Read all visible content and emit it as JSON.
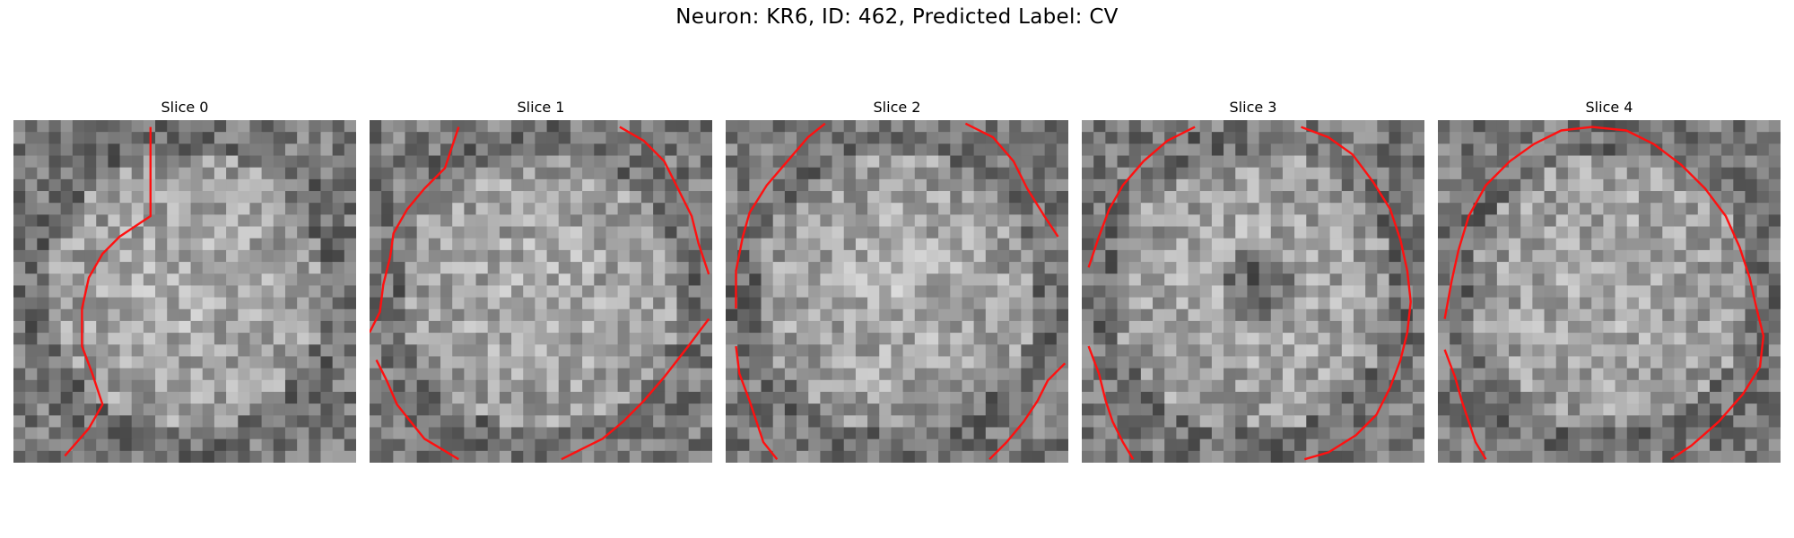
{
  "figure": {
    "title": "Neuron: KR6, ID: 462, Predicted Label: CV"
  },
  "panels": [
    {
      "title": "Slice 0",
      "dark_center": false,
      "contours": [
        [
          [
            0.15,
            0.98
          ],
          [
            0.22,
            0.9
          ],
          [
            0.26,
            0.83
          ],
          [
            0.23,
            0.74
          ],
          [
            0.2,
            0.66
          ],
          [
            0.2,
            0.55
          ],
          [
            0.22,
            0.46
          ],
          [
            0.26,
            0.39
          ],
          [
            0.31,
            0.34
          ],
          [
            0.37,
            0.3
          ],
          [
            0.4,
            0.28
          ],
          [
            0.4,
            0.02
          ]
        ]
      ]
    },
    {
      "title": "Slice 1",
      "dark_center": false,
      "contours": [
        [
          [
            0.0,
            0.62
          ],
          [
            0.03,
            0.56
          ],
          [
            0.04,
            0.48
          ],
          [
            0.06,
            0.4
          ],
          [
            0.07,
            0.33
          ],
          [
            0.11,
            0.26
          ],
          [
            0.16,
            0.2
          ],
          [
            0.22,
            0.14
          ],
          [
            0.26,
            0.02
          ]
        ],
        [
          [
            0.73,
            0.02
          ],
          [
            0.8,
            0.06
          ],
          [
            0.86,
            0.12
          ],
          [
            0.9,
            0.2
          ],
          [
            0.94,
            0.28
          ],
          [
            0.96,
            0.36
          ],
          [
            0.99,
            0.45
          ]
        ],
        [
          [
            0.02,
            0.7
          ],
          [
            0.05,
            0.76
          ],
          [
            0.08,
            0.83
          ],
          [
            0.12,
            0.88
          ],
          [
            0.16,
            0.93
          ],
          [
            0.21,
            0.96
          ],
          [
            0.26,
            0.99
          ]
        ],
        [
          [
            0.56,
            0.99
          ],
          [
            0.62,
            0.96
          ],
          [
            0.68,
            0.93
          ],
          [
            0.74,
            0.88
          ],
          [
            0.8,
            0.82
          ],
          [
            0.86,
            0.75
          ],
          [
            0.93,
            0.66
          ],
          [
            0.99,
            0.58
          ]
        ]
      ]
    },
    {
      "title": "Slice 2",
      "dark_center": false,
      "contours": [
        [
          [
            0.03,
            0.55
          ],
          [
            0.03,
            0.44
          ],
          [
            0.05,
            0.34
          ],
          [
            0.07,
            0.27
          ],
          [
            0.12,
            0.19
          ],
          [
            0.18,
            0.12
          ],
          [
            0.24,
            0.05
          ],
          [
            0.29,
            0.01
          ]
        ],
        [
          [
            0.7,
            0.01
          ],
          [
            0.78,
            0.05
          ],
          [
            0.84,
            0.12
          ],
          [
            0.88,
            0.2
          ],
          [
            0.93,
            0.28
          ],
          [
            0.97,
            0.34
          ]
        ],
        [
          [
            0.03,
            0.66
          ],
          [
            0.04,
            0.74
          ],
          [
            0.07,
            0.82
          ],
          [
            0.09,
            0.88
          ],
          [
            0.11,
            0.94
          ],
          [
            0.15,
            0.99
          ]
        ],
        [
          [
            0.77,
            0.99
          ],
          [
            0.82,
            0.94
          ],
          [
            0.87,
            0.88
          ],
          [
            0.91,
            0.82
          ],
          [
            0.94,
            0.76
          ],
          [
            0.99,
            0.71
          ]
        ]
      ]
    },
    {
      "title": "Slice 3",
      "dark_center": true,
      "contours": [
        [
          [
            0.02,
            0.43
          ],
          [
            0.05,
            0.34
          ],
          [
            0.08,
            0.26
          ],
          [
            0.12,
            0.19
          ],
          [
            0.18,
            0.12
          ],
          [
            0.25,
            0.06
          ],
          [
            0.33,
            0.02
          ]
        ],
        [
          [
            0.64,
            0.02
          ],
          [
            0.72,
            0.05
          ],
          [
            0.79,
            0.1
          ],
          [
            0.85,
            0.18
          ],
          [
            0.9,
            0.26
          ],
          [
            0.93,
            0.35
          ],
          [
            0.95,
            0.44
          ],
          [
            0.96,
            0.53
          ],
          [
            0.95,
            0.62
          ],
          [
            0.93,
            0.7
          ],
          [
            0.9,
            0.78
          ],
          [
            0.86,
            0.86
          ],
          [
            0.8,
            0.92
          ],
          [
            0.72,
            0.97
          ],
          [
            0.65,
            0.99
          ]
        ],
        [
          [
            0.02,
            0.66
          ],
          [
            0.05,
            0.74
          ],
          [
            0.07,
            0.82
          ],
          [
            0.09,
            0.88
          ],
          [
            0.12,
            0.94
          ],
          [
            0.15,
            0.99
          ]
        ]
      ]
    },
    {
      "title": "Slice 4",
      "dark_center": false,
      "contours": [
        [
          [
            0.02,
            0.58
          ],
          [
            0.04,
            0.47
          ],
          [
            0.06,
            0.38
          ],
          [
            0.09,
            0.28
          ],
          [
            0.14,
            0.19
          ],
          [
            0.21,
            0.12
          ],
          [
            0.28,
            0.07
          ],
          [
            0.36,
            0.03
          ],
          [
            0.45,
            0.02
          ],
          [
            0.55,
            0.03
          ],
          [
            0.63,
            0.07
          ],
          [
            0.71,
            0.13
          ],
          [
            0.78,
            0.2
          ],
          [
            0.84,
            0.28
          ],
          [
            0.88,
            0.37
          ],
          [
            0.91,
            0.46
          ],
          [
            0.93,
            0.55
          ],
          [
            0.95,
            0.63
          ],
          [
            0.94,
            0.72
          ],
          [
            0.89,
            0.8
          ],
          [
            0.82,
            0.88
          ],
          [
            0.74,
            0.95
          ],
          [
            0.68,
            0.99
          ]
        ],
        [
          [
            0.02,
            0.67
          ],
          [
            0.05,
            0.75
          ],
          [
            0.07,
            0.82
          ],
          [
            0.09,
            0.88
          ],
          [
            0.11,
            0.94
          ],
          [
            0.14,
            0.99
          ]
        ]
      ]
    }
  ],
  "colors": {
    "contour": "#ff1010"
  }
}
